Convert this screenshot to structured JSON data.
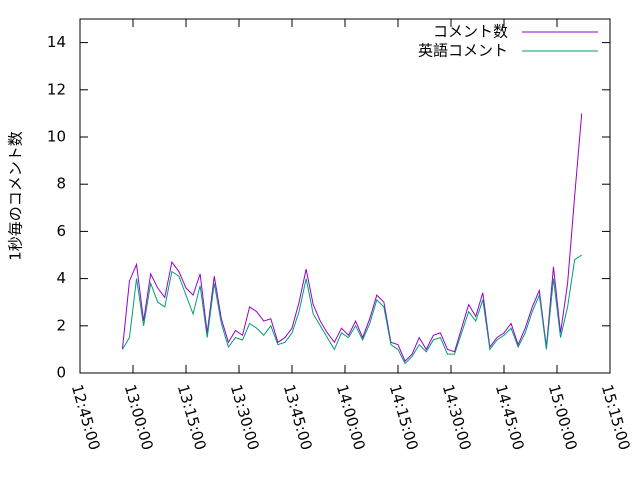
{
  "chart_data": {
    "type": "line",
    "y_label": "1秒毎のコメント数",
    "x": [
      "12:57:00",
      "12:59:00",
      "13:01:00",
      "13:03:00",
      "13:05:00",
      "13:07:00",
      "13:09:00",
      "13:11:00",
      "13:13:00",
      "13:15:00",
      "13:17:00",
      "13:19:00",
      "13:21:00",
      "13:23:00",
      "13:25:00",
      "13:27:00",
      "13:29:00",
      "13:31:00",
      "13:33:00",
      "13:35:00",
      "13:37:00",
      "13:39:00",
      "13:41:00",
      "13:43:00",
      "13:45:00",
      "13:47:00",
      "13:49:00",
      "13:51:00",
      "13:53:00",
      "13:55:00",
      "13:57:00",
      "13:59:00",
      "14:01:00",
      "14:03:00",
      "14:05:00",
      "14:07:00",
      "14:09:00",
      "14:11:00",
      "14:13:00",
      "14:15:00",
      "14:17:00",
      "14:19:00",
      "14:21:00",
      "14:23:00",
      "14:25:00",
      "14:27:00",
      "14:29:00",
      "14:31:00",
      "14:33:00",
      "14:35:00",
      "14:37:00",
      "14:39:00",
      "14:41:00",
      "14:43:00",
      "14:45:00",
      "14:47:00",
      "14:49:00",
      "14:51:00",
      "14:53:00",
      "14:55:00",
      "14:57:00",
      "14:59:00",
      "15:01:00",
      "15:03:00",
      "15:05:00",
      "15:07:00"
    ],
    "series": [
      {
        "name": "コメント数",
        "color": "#9400d3",
        "values": [
          1.0,
          3.9,
          4.6,
          2.2,
          4.2,
          3.6,
          3.2,
          4.7,
          4.3,
          3.6,
          3.3,
          4.2,
          1.7,
          4.1,
          2.3,
          1.3,
          1.8,
          1.6,
          2.8,
          2.6,
          2.2,
          2.3,
          1.3,
          1.5,
          1.9,
          3.0,
          4.4,
          2.9,
          2.2,
          1.7,
          1.3,
          1.9,
          1.6,
          2.2,
          1.5,
          2.3,
          3.3,
          3.0,
          1.3,
          1.2,
          0.5,
          0.8,
          1.5,
          1.0,
          1.6,
          1.7,
          1.0,
          0.9,
          1.9,
          2.9,
          2.4,
          3.4,
          1.1,
          1.5,
          1.7,
          2.1,
          1.2,
          1.9,
          2.8,
          3.5,
          1.1,
          4.5,
          1.7,
          3.8,
          7.5,
          11.0
        ]
      },
      {
        "name": "英語コメント",
        "color": "#009e73",
        "values": [
          1.0,
          1.5,
          4.0,
          2.0,
          3.8,
          3.0,
          2.8,
          4.3,
          4.1,
          3.3,
          2.5,
          3.7,
          1.5,
          3.8,
          2.1,
          1.1,
          1.5,
          1.4,
          2.1,
          1.9,
          1.6,
          2.0,
          1.2,
          1.3,
          1.7,
          2.6,
          4.0,
          2.5,
          2.0,
          1.5,
          1.0,
          1.7,
          1.5,
          2.0,
          1.4,
          2.1,
          3.1,
          2.8,
          1.2,
          1.0,
          0.4,
          0.7,
          1.2,
          0.9,
          1.4,
          1.5,
          0.8,
          0.8,
          1.7,
          2.6,
          2.2,
          3.1,
          1.0,
          1.4,
          1.6,
          1.9,
          1.1,
          1.7,
          2.6,
          3.3,
          1.0,
          4.0,
          1.5,
          2.8,
          4.8,
          5.0
        ]
      }
    ],
    "xlim": [
      "12:45:00",
      "15:15:00"
    ],
    "xticks": [
      "12:45:00",
      "13:00:00",
      "13:15:00",
      "13:30:00",
      "13:45:00",
      "14:00:00",
      "14:15:00",
      "14:30:00",
      "14:45:00",
      "15:00:00",
      "15:15:00"
    ],
    "ylim": [
      0,
      15
    ],
    "yticks": [
      0,
      2,
      4,
      6,
      8,
      10,
      12,
      14
    ],
    "legend": "top-right",
    "grid": false
  }
}
